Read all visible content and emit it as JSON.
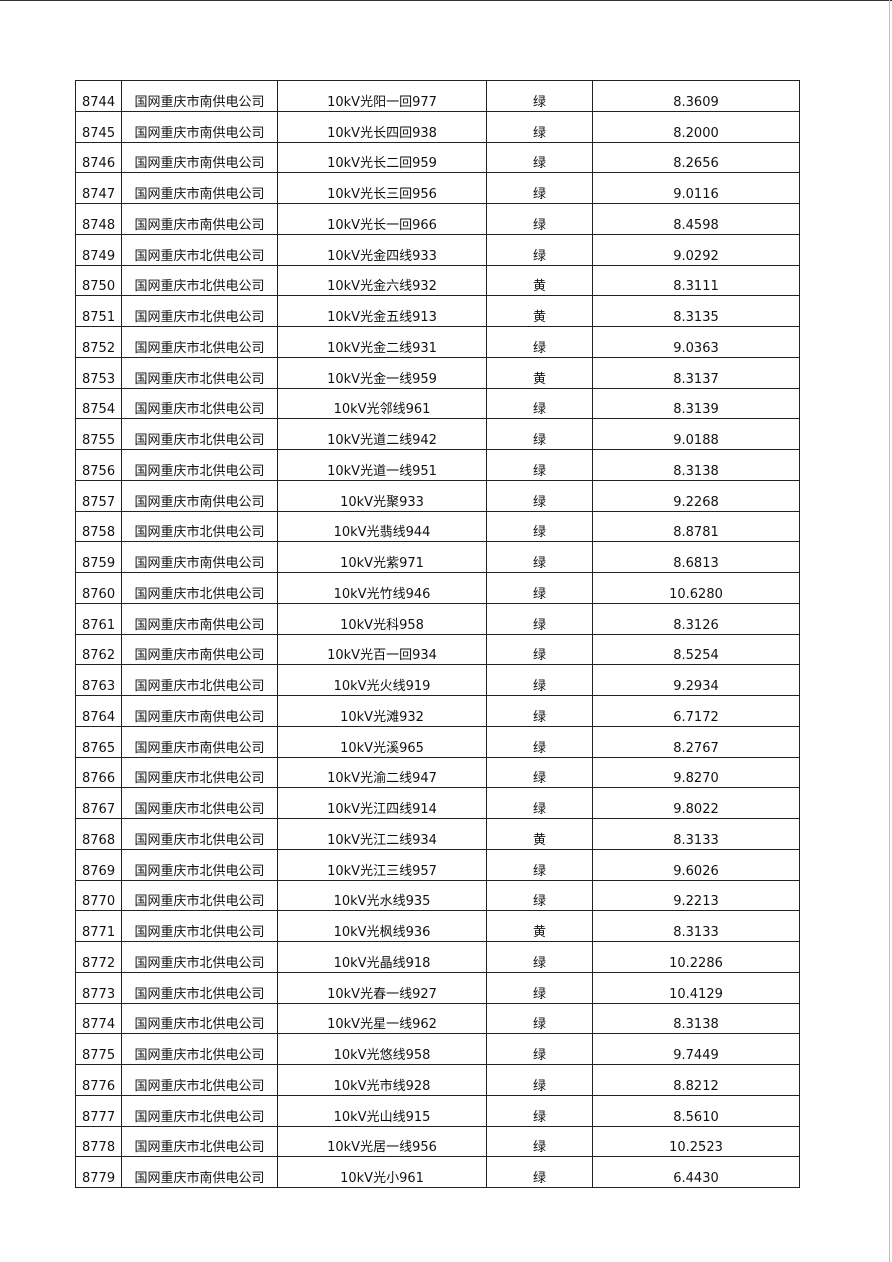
{
  "table": {
    "rows": [
      [
        "8744",
        "国网重庆市南供电公司",
        "10kV光阳一回977",
        "绿",
        "8.3609"
      ],
      [
        "8745",
        "国网重庆市南供电公司",
        "10kV光长四回938",
        "绿",
        "8.2000"
      ],
      [
        "8746",
        "国网重庆市南供电公司",
        "10kV光长二回959",
        "绿",
        "8.2656"
      ],
      [
        "8747",
        "国网重庆市南供电公司",
        "10kV光长三回956",
        "绿",
        "9.0116"
      ],
      [
        "8748",
        "国网重庆市南供电公司",
        "10kV光长一回966",
        "绿",
        "8.4598"
      ],
      [
        "8749",
        "国网重庆市北供电公司",
        "10kV光金四线933",
        "绿",
        "9.0292"
      ],
      [
        "8750",
        "国网重庆市北供电公司",
        "10kV光金六线932",
        "黄",
        "8.3111"
      ],
      [
        "8751",
        "国网重庆市北供电公司",
        "10kV光金五线913",
        "黄",
        "8.3135"
      ],
      [
        "8752",
        "国网重庆市北供电公司",
        "10kV光金二线931",
        "绿",
        "9.0363"
      ],
      [
        "8753",
        "国网重庆市北供电公司",
        "10kV光金一线959",
        "黄",
        "8.3137"
      ],
      [
        "8754",
        "国网重庆市北供电公司",
        "10kV光邻线961",
        "绿",
        "8.3139"
      ],
      [
        "8755",
        "国网重庆市北供电公司",
        "10kV光道二线942",
        "绿",
        "9.0188"
      ],
      [
        "8756",
        "国网重庆市北供电公司",
        "10kV光道一线951",
        "绿",
        "8.3138"
      ],
      [
        "8757",
        "国网重庆市南供电公司",
        "10kV光聚933",
        "绿",
        "9.2268"
      ],
      [
        "8758",
        "国网重庆市北供电公司",
        "10kV光翡线944",
        "绿",
        "8.8781"
      ],
      [
        "8759",
        "国网重庆市南供电公司",
        "10kV光紫971",
        "绿",
        "8.6813"
      ],
      [
        "8760",
        "国网重庆市北供电公司",
        "10kV光竹线946",
        "绿",
        "10.6280"
      ],
      [
        "8761",
        "国网重庆市南供电公司",
        "10kV光科958",
        "绿",
        "8.3126"
      ],
      [
        "8762",
        "国网重庆市南供电公司",
        "10kV光百一回934",
        "绿",
        "8.5254"
      ],
      [
        "8763",
        "国网重庆市北供电公司",
        "10kV光火线919",
        "绿",
        "9.2934"
      ],
      [
        "8764",
        "国网重庆市南供电公司",
        "10kV光滩932",
        "绿",
        "6.7172"
      ],
      [
        "8765",
        "国网重庆市南供电公司",
        "10kV光溪965",
        "绿",
        "8.2767"
      ],
      [
        "8766",
        "国网重庆市北供电公司",
        "10kV光渝二线947",
        "绿",
        "9.8270"
      ],
      [
        "8767",
        "国网重庆市北供电公司",
        "10kV光江四线914",
        "绿",
        "9.8022"
      ],
      [
        "8768",
        "国网重庆市北供电公司",
        "10kV光江二线934",
        "黄",
        "8.3133"
      ],
      [
        "8769",
        "国网重庆市北供电公司",
        "10kV光江三线957",
        "绿",
        "9.6026"
      ],
      [
        "8770",
        "国网重庆市北供电公司",
        "10kV光水线935",
        "绿",
        "9.2213"
      ],
      [
        "8771",
        "国网重庆市北供电公司",
        "10kV光枫线936",
        "黄",
        "8.3133"
      ],
      [
        "8772",
        "国网重庆市北供电公司",
        "10kV光晶线918",
        "绿",
        "10.2286"
      ],
      [
        "8773",
        "国网重庆市北供电公司",
        "10kV光春一线927",
        "绿",
        "10.4129"
      ],
      [
        "8774",
        "国网重庆市北供电公司",
        "10kV光星一线962",
        "绿",
        "8.3138"
      ],
      [
        "8775",
        "国网重庆市北供电公司",
        "10kV光悠线958",
        "绿",
        "9.7449"
      ],
      [
        "8776",
        "国网重庆市北供电公司",
        "10kV光市线928",
        "绿",
        "8.8212"
      ],
      [
        "8777",
        "国网重庆市北供电公司",
        "10kV光山线915",
        "绿",
        "8.5610"
      ],
      [
        "8778",
        "国网重庆市北供电公司",
        "10kV光居一线956",
        "绿",
        "10.2523"
      ],
      [
        "8779",
        "国网重庆市南供电公司",
        "10kV光小961",
        "绿",
        "6.4430"
      ]
    ]
  }
}
